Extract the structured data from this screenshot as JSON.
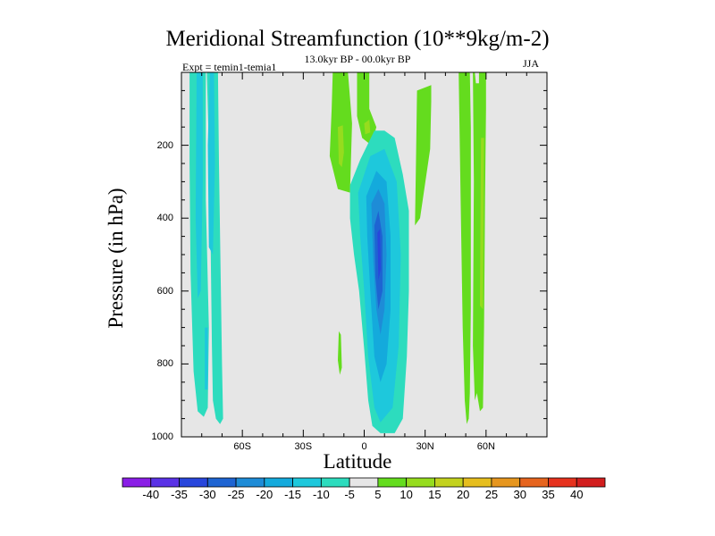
{
  "chart_data": {
    "type": "heatmap",
    "title": "Meridional Streamfunction (10**9kg/m-2)",
    "subtitle": "13.0kyr BP - 00.0kyr BP",
    "left_string": "Expt = temin1-temia1",
    "right_string": "JJA",
    "xlabel": "Latitude",
    "ylabel": "Pressure (in hPa)",
    "xlim": [
      -90,
      90
    ],
    "ylim": [
      1000,
      0
    ],
    "x_ticks": [
      {
        "value": -60,
        "label": "60S"
      },
      {
        "value": -30,
        "label": "30S"
      },
      {
        "value": 0,
        "label": "0"
      },
      {
        "value": 30,
        "label": "30N"
      },
      {
        "value": 60,
        "label": "60N"
      }
    ],
    "y_ticks": [
      {
        "value": 200,
        "label": "200"
      },
      {
        "value": 400,
        "label": "400"
      },
      {
        "value": 600,
        "label": "600"
      },
      {
        "value": 800,
        "label": "800"
      },
      {
        "value": 1000,
        "label": "1000"
      }
    ],
    "background_color": "#e6e6e6",
    "colorbar": {
      "levels": [
        -40,
        -35,
        -30,
        -25,
        -20,
        -15,
        -10,
        -5,
        5,
        10,
        15,
        20,
        25,
        30,
        35,
        40
      ],
      "colors": [
        "#8a1ee6",
        "#5a32e6",
        "#2846dc",
        "#1e64d2",
        "#1e8cd7",
        "#14aadc",
        "#1ec8dc",
        "#2ddcbe",
        "#e6e6e6",
        "#64dc1e",
        "#96dc1e",
        "#c3d21e",
        "#e6be1e",
        "#e6961e",
        "#e6641e",
        "#e6321e",
        "#d21e1e"
      ]
    },
    "regions": [
      {
        "name": "southern-high-lat-negative-cell",
        "value": -10,
        "points": [
          [
            -86,
            0
          ],
          [
            -78,
            0
          ],
          [
            -78,
            350
          ],
          [
            -76.5,
            700
          ],
          [
            -77,
            920
          ],
          [
            -79,
            945
          ],
          [
            -82,
            930
          ],
          [
            -84,
            820
          ],
          [
            -85.5,
            550
          ],
          [
            -86,
            250
          ]
        ]
      },
      {
        "name": "southern-high-lat-negative-cell-b",
        "value": -10,
        "points": [
          [
            -77.5,
            0
          ],
          [
            -72,
            0
          ],
          [
            -71.5,
            250
          ],
          [
            -70,
            800
          ],
          [
            -69.5,
            950
          ],
          [
            -71,
            965
          ],
          [
            -73,
            950
          ],
          [
            -74.5,
            900
          ],
          [
            -75,
            750
          ],
          [
            -76,
            300
          ]
        ]
      },
      {
        "name": "southern-high-lat-core",
        "value": -15,
        "points": [
          [
            -82.5,
            0
          ],
          [
            -79.5,
            0
          ],
          [
            -79.5,
            300
          ],
          [
            -80.5,
            600
          ],
          [
            -82,
            620
          ],
          [
            -83,
            400
          ]
        ]
      },
      {
        "name": "southern-high-lat-core-b",
        "value": -15,
        "points": [
          [
            -76,
            0
          ],
          [
            -74,
            0
          ],
          [
            -73.5,
            250
          ],
          [
            -74.5,
            500
          ],
          [
            -76.5,
            480
          ],
          [
            -77,
            200
          ]
        ]
      },
      {
        "name": "southern-high-lat-core-c",
        "value": -15,
        "points": [
          [
            -78.5,
            700
          ],
          [
            -77,
            700
          ],
          [
            -77,
            870
          ],
          [
            -78.5,
            870
          ]
        ]
      },
      {
        "name": "tropical-upper-positive-a",
        "value": 5,
        "points": [
          [
            -15.5,
            0
          ],
          [
            -8,
            0
          ],
          [
            -6,
            140
          ],
          [
            -7,
            330
          ],
          [
            -13,
            320
          ],
          [
            -17,
            230
          ],
          [
            -16,
            100
          ]
        ]
      },
      {
        "name": "tropical-upper-positive-b",
        "value": 5,
        "points": [
          [
            -3.5,
            0
          ],
          [
            2.5,
            0
          ],
          [
            2.5,
            100
          ],
          [
            6,
            150
          ],
          [
            3.5,
            200
          ],
          [
            -1,
            180
          ],
          [
            -3.5,
            120
          ]
        ]
      },
      {
        "name": "tropical-upper-positive-core",
        "value": 10,
        "points": [
          [
            -13,
            150
          ],
          [
            -10.5,
            145
          ],
          [
            -10,
            220
          ],
          [
            -11,
            260
          ],
          [
            -12.5,
            250
          ]
        ]
      },
      {
        "name": "tropical-upper-positive-core-b",
        "value": 10,
        "points": [
          [
            0,
            140
          ],
          [
            2.5,
            130
          ],
          [
            3,
            165
          ],
          [
            0.5,
            170
          ]
        ]
      },
      {
        "name": "tropical-positive-small",
        "value": 5,
        "points": [
          [
            -12.5,
            710
          ],
          [
            -11.5,
            720
          ],
          [
            -11,
            810
          ],
          [
            -12,
            830
          ],
          [
            -13,
            790
          ]
        ]
      },
      {
        "name": "tropical-negative-cell",
        "value": -10,
        "points": [
          [
            -7,
            310
          ],
          [
            -2,
            240
          ],
          [
            5,
            160
          ],
          [
            10,
            160
          ],
          [
            15,
            180
          ],
          [
            19,
            280
          ],
          [
            22,
            380
          ],
          [
            22,
            600
          ],
          [
            21,
            780
          ],
          [
            19,
            950
          ],
          [
            15,
            990
          ],
          [
            8,
            990
          ],
          [
            4,
            970
          ],
          [
            2,
            900
          ],
          [
            0,
            760
          ],
          [
            -2.5,
            600
          ],
          [
            -5,
            500
          ],
          [
            -7,
            400
          ]
        ]
      },
      {
        "name": "tropical-negative-15",
        "value": -15,
        "points": [
          [
            -3,
            330
          ],
          [
            3,
            230
          ],
          [
            10,
            210
          ],
          [
            16,
            300
          ],
          [
            18,
            500
          ],
          [
            17,
            750
          ],
          [
            14,
            920
          ],
          [
            8,
            960
          ],
          [
            5,
            920
          ],
          [
            2,
            780
          ],
          [
            0,
            600
          ],
          [
            -2,
            450
          ]
        ]
      },
      {
        "name": "tropical-negative-20",
        "value": -20,
        "points": [
          [
            1,
            340
          ],
          [
            6,
            270
          ],
          [
            11,
            300
          ],
          [
            13,
            450
          ],
          [
            13,
            650
          ],
          [
            11,
            800
          ],
          [
            8,
            850
          ],
          [
            5,
            780
          ],
          [
            3,
            600
          ],
          [
            1.5,
            450
          ]
        ]
      },
      {
        "name": "tropical-negative-25",
        "value": -25,
        "points": [
          [
            3.5,
            360
          ],
          [
            7,
            320
          ],
          [
            10,
            360
          ],
          [
            11,
            500
          ],
          [
            10,
            650
          ],
          [
            8,
            720
          ],
          [
            6,
            650
          ],
          [
            4.5,
            520
          ]
        ]
      },
      {
        "name": "tropical-negative-30",
        "value": -30,
        "points": [
          [
            5,
            420
          ],
          [
            7,
            380
          ],
          [
            9,
            450
          ],
          [
            9,
            600
          ],
          [
            7,
            650
          ],
          [
            5.5,
            560
          ]
        ]
      },
      {
        "name": "tropical-negative-35",
        "value": -35,
        "points": [
          [
            6.5,
            440
          ],
          [
            7.8,
            430
          ],
          [
            8.2,
            540
          ],
          [
            7,
            570
          ]
        ]
      },
      {
        "name": "north-tropical-positive",
        "value": 5,
        "points": [
          [
            26,
            50
          ],
          [
            33,
            35
          ],
          [
            33,
            80
          ],
          [
            32.5,
            210
          ],
          [
            27.5,
            400
          ],
          [
            25,
            420
          ],
          [
            25.5,
            250
          ]
        ]
      },
      {
        "name": "north-subtropical-positive-a",
        "value": 5,
        "points": [
          [
            46.5,
            0
          ],
          [
            52,
            0
          ],
          [
            52.5,
            150
          ],
          [
            52.5,
            650
          ],
          [
            52,
            880
          ],
          [
            51.5,
            950
          ],
          [
            50.5,
            965
          ],
          [
            49.5,
            900
          ],
          [
            48.5,
            700
          ],
          [
            47.5,
            350
          ]
        ]
      },
      {
        "name": "north-subtropical-positive-b",
        "value": 5,
        "points": [
          [
            53.5,
            0
          ],
          [
            60,
            0
          ],
          [
            60,
            100
          ],
          [
            59.5,
            350
          ],
          [
            59,
            700
          ],
          [
            58.5,
            920
          ],
          [
            57,
            930
          ],
          [
            55.5,
            880
          ],
          [
            54.5,
            900
          ],
          [
            53.5,
            750
          ],
          [
            54,
            300
          ]
        ]
      },
      {
        "name": "north-subtropical-positive-core",
        "value": 10,
        "points": [
          [
            57.5,
            180
          ],
          [
            59,
            180
          ],
          [
            58.5,
            650
          ],
          [
            57,
            640
          ]
        ]
      },
      {
        "name": "north-subtropical-gap",
        "value": 0,
        "points": [
          [
            54.5,
            0
          ],
          [
            56.5,
            0
          ],
          [
            56.5,
            30
          ],
          [
            55,
            30
          ]
        ]
      }
    ]
  }
}
